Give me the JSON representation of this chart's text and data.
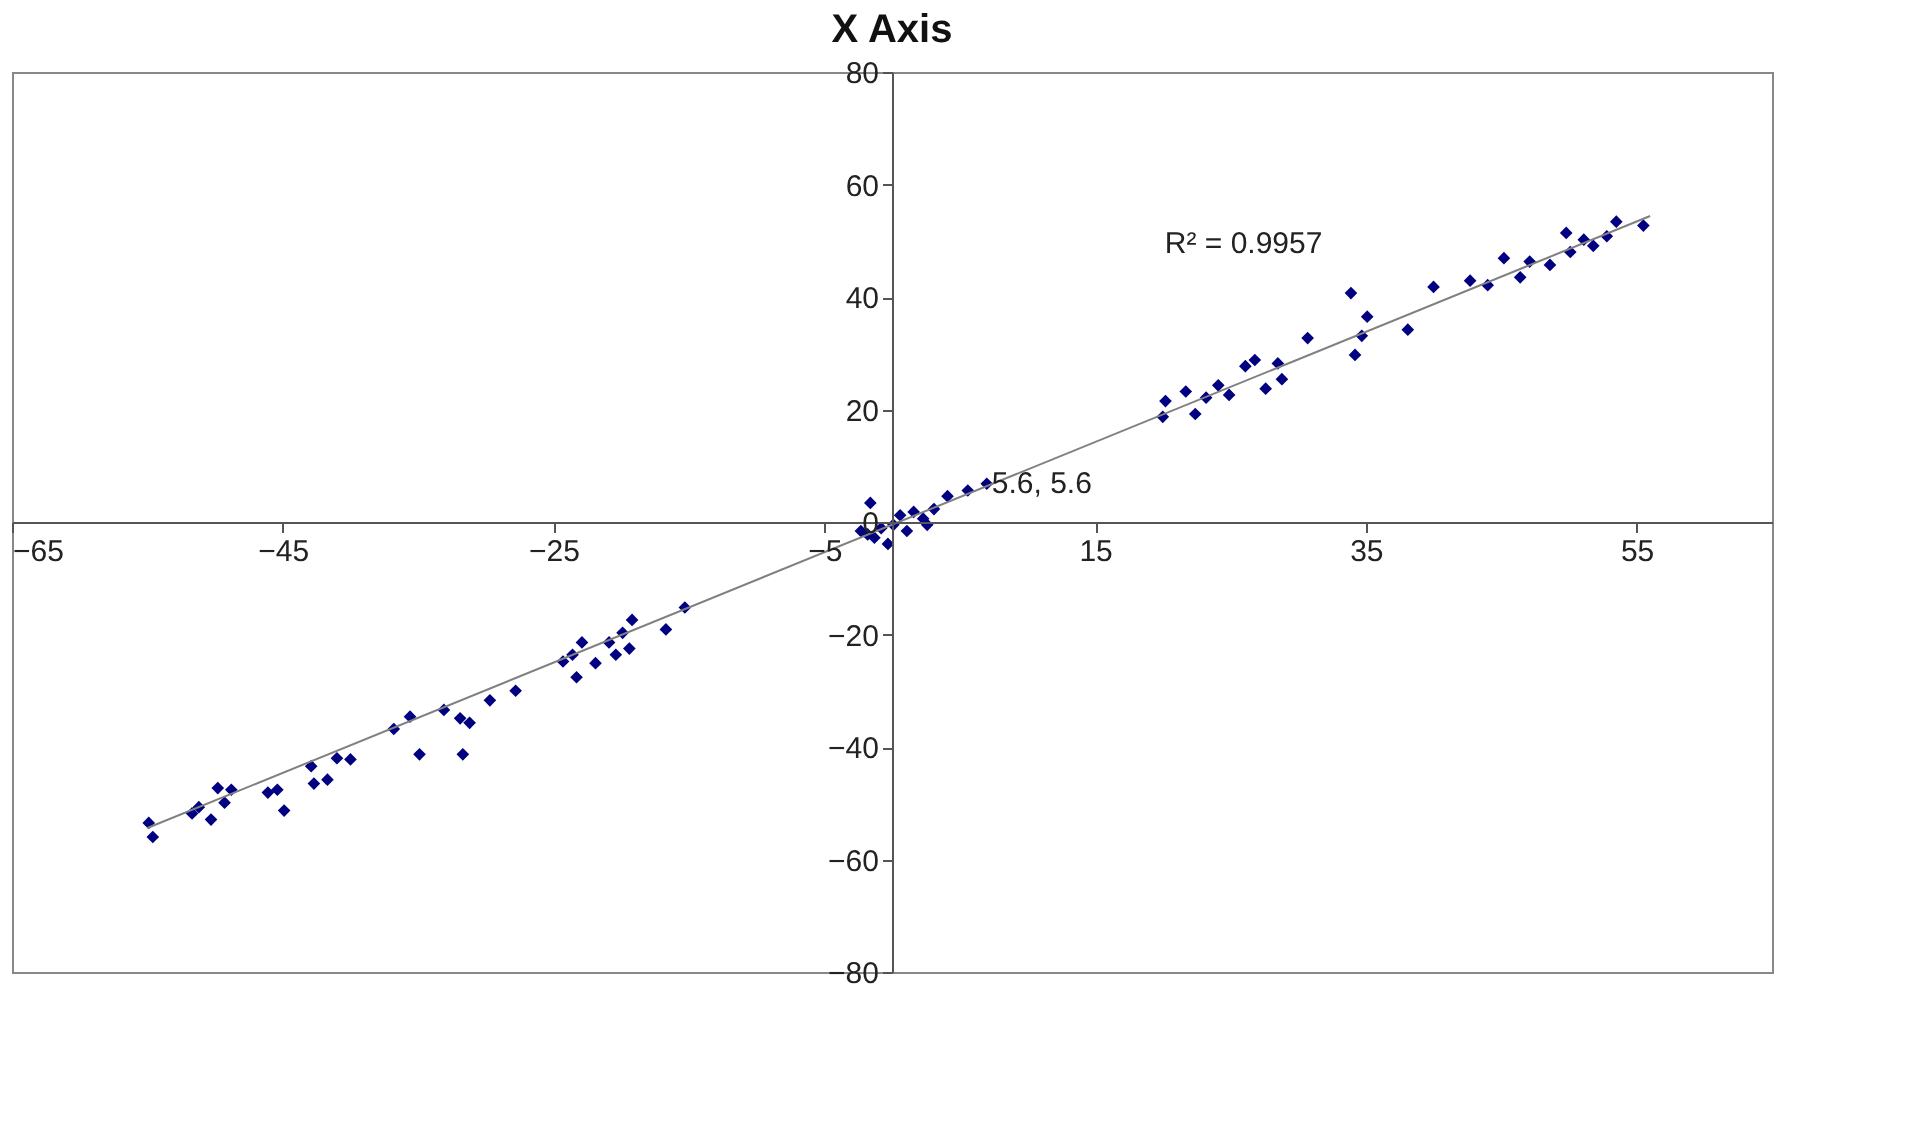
{
  "chart_data": {
    "type": "scatter",
    "title": "X Axis",
    "xlim": [
      -65,
      65
    ],
    "xticks": [
      -65,
      -45,
      -25,
      -5,
      15,
      35,
      55
    ],
    "ylim": [
      -80,
      80
    ],
    "yticks": [
      -80,
      -60,
      -40,
      -20,
      0,
      20,
      40,
      60,
      80
    ],
    "grid": false,
    "series": [
      {
        "color": "#000080",
        "marker": "diamond",
        "x": [
          -54.9,
          -54.6,
          -51.7,
          -51.2,
          -50.3,
          -49.8,
          -48.8,
          -49.3,
          -46.1,
          -45.4,
          -44.9,
          -42.9,
          -42.7,
          -41.7,
          -41.0,
          -40.0,
          -36.8,
          -35.6,
          -34.9,
          -33.1,
          -31.9,
          -31.2,
          -31.7,
          -29.7,
          -27.8,
          -24.3,
          -23.6,
          -23.3,
          -22.9,
          -21.9,
          -20.9,
          -20.4,
          -19.9,
          -19.2,
          -19.4,
          -16.7,
          -15.3,
          -1.6,
          4.1,
          5.6,
          7.0,
          3.1,
          2.3,
          1.6,
          0.6,
          0.1,
          -0.8,
          -1.8,
          -1.3,
          -0.3,
          1.1,
          2.6,
          -2.3,
          20.2,
          20.0,
          21.7,
          22.4,
          23.2,
          24.1,
          24.9,
          26.1,
          26.8,
          27.6,
          28.5,
          28.8,
          30.7,
          33.9,
          35.1,
          34.7,
          34.2,
          38.1,
          40.0,
          42.7,
          44.0,
          45.2,
          46.4,
          47.1,
          48.6,
          49.8,
          50.1,
          51.1,
          51.8,
          52.8,
          53.5,
          55.5
        ],
        "values": [
          -53.5,
          -56.0,
          -51.8,
          -50.7,
          -52.9,
          -47.3,
          -47.6,
          -49.9,
          -48.1,
          -47.6,
          -51.3,
          -43.4,
          -46.5,
          -45.8,
          -42.0,
          -42.2,
          -36.8,
          -34.6,
          -41.3,
          -33.4,
          -34.9,
          -35.7,
          -41.3,
          -31.7,
          -30.0,
          -24.8,
          -23.6,
          -27.6,
          -21.4,
          -25.1,
          -21.4,
          -23.6,
          -19.7,
          -17.4,
          -22.5,
          -19.1,
          -15.2,
          3.4,
          4.6,
          5.6,
          6.8,
          2.3,
          0.6,
          1.8,
          1.2,
          -0.5,
          -1.1,
          -2.2,
          -2.8,
          -3.9,
          -1.6,
          -0.5,
          -1.6,
          21.5,
          18.7,
          23.2,
          19.2,
          22.1,
          24.3,
          22.6,
          27.7,
          28.8,
          23.7,
          28.2,
          25.4,
          32.7,
          40.7,
          36.5,
          33.1,
          29.7,
          34.2,
          41.8,
          42.9,
          42.1,
          46.9,
          43.5,
          46.3,
          45.7,
          51.4,
          48.0,
          50.2,
          49.1,
          50.8,
          53.4,
          52.7
        ]
      },
      {
        "type": "line",
        "color": "#808080",
        "line_style": "solid",
        "x": [
          -55,
          56
        ],
        "values": [
          -54.4,
          54.4
        ]
      }
    ],
    "annotations": [
      "R² = 0.9957",
      {
        "text": "5.6, 5.6",
        "x": 5.6,
        "y": 5.6
      }
    ]
  }
}
